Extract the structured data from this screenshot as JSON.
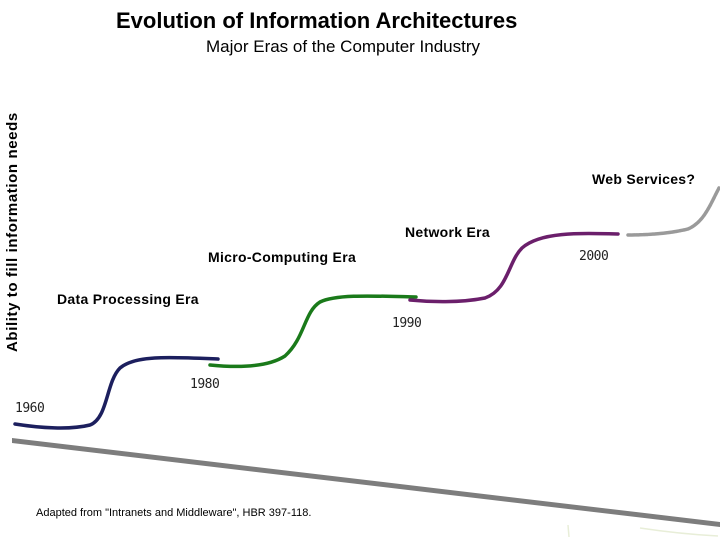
{
  "title": "Evolution of  Information Architectures",
  "subtitle": "Major Eras of the Computer Industry",
  "y_axis_label": "Ability to fill information needs",
  "eras": [
    {
      "label": "Data Processing Era",
      "color": "#1c1f5e",
      "start_year": "1960",
      "end_year": "1980"
    },
    {
      "label": "Micro-Computing Era",
      "color": "#1a7a1a",
      "start_year": "1980",
      "end_year": "1990"
    },
    {
      "label": "Network Era",
      "color": "#6b1f6b",
      "start_year": "1990",
      "end_year": "2000"
    },
    {
      "label": "Web Services?",
      "color": "#9a9a9a",
      "start_year": "2000",
      "end_year": ""
    }
  ],
  "years": [
    "1960",
    "1980",
    "1990",
    "2000"
  ],
  "source_note": "Adapted from \"Intranets and Middleware\", HBR 397-118.",
  "baseline_color": "#7d7d7d"
}
